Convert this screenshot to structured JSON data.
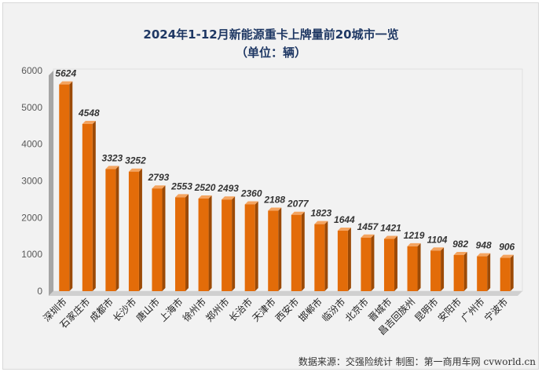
{
  "chart_data": {
    "type": "bar",
    "title": "2024年1-12月新能源重卡上牌量前20城市一览",
    "subtitle": "（单位：辆）",
    "categories": [
      "深圳市",
      "石家庄市",
      "成都市",
      "长沙市",
      "唐山市",
      "上海市",
      "徐州市",
      "郑州市",
      "长治市",
      "天津市",
      "西安市",
      "邯郸市",
      "临汾市",
      "北京市",
      "晋城市",
      "昌吉回族州",
      "昆明市",
      "安阳市",
      "广州市",
      "宁波市"
    ],
    "values": [
      5624,
      4548,
      3323,
      3252,
      2793,
      2553,
      2520,
      2493,
      2360,
      2188,
      2077,
      1823,
      1644,
      1457,
      1421,
      1219,
      1104,
      982,
      948,
      906
    ],
    "yticks": [
      "0",
      "1000",
      "2000",
      "3000",
      "4000",
      "5000",
      "6000"
    ],
    "ylim": [
      0,
      6000
    ],
    "grid": false,
    "bar_color": "#e36c09",
    "source_note": "数据来源：交强险统计  制图：第一商用车网 cvworld.cn"
  }
}
